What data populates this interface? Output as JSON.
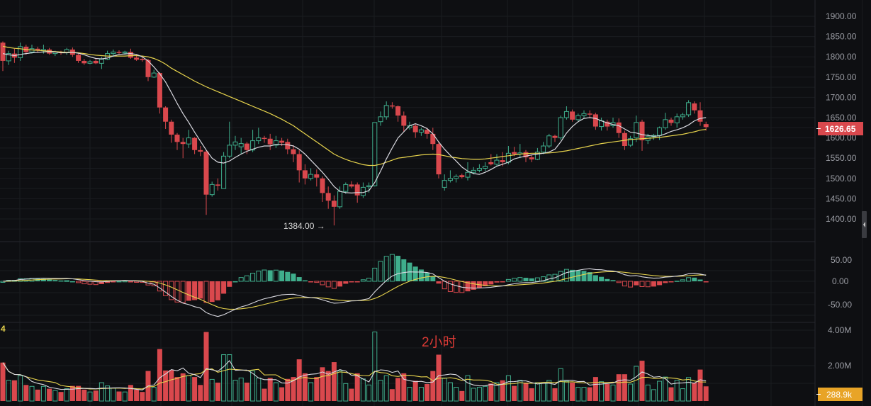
{
  "chart_data": {
    "type": "candlestick",
    "title": "",
    "period_label": "2小时",
    "current_price": "1626.65",
    "current_volume": "288.9k",
    "low_annotation": "1384.00 →",
    "pane_index_label": "4",
    "price_axis": {
      "ticks": [
        "1900.00",
        "1850.00",
        "1800.00",
        "1750.00",
        "1700.00",
        "1650.00",
        "1600.00",
        "1550.00",
        "1500.00",
        "1450.00",
        "1400.00"
      ],
      "range": [
        1385,
        1910
      ]
    },
    "macd_axis": {
      "ticks": [
        "50.00",
        "0.00",
        "-50.00"
      ]
    },
    "volume_axis": {
      "ticks": [
        "4.00M",
        "2.00M"
      ]
    },
    "colors": {
      "up": "#3fae8c",
      "down": "#d9484d",
      "ma_fast": "#d9d9e0",
      "ma_slow": "#e8d44d",
      "bg": "#0e0f12",
      "grid": "#1d1f24",
      "price_tag": "#d9484d",
      "volume_tag": "#e8a427"
    },
    "candles": [
      [
        1835,
        1838,
        1765,
        1790
      ],
      [
        1790,
        1815,
        1780,
        1808
      ],
      [
        1808,
        1820,
        1785,
        1798
      ],
      [
        1798,
        1835,
        1790,
        1825
      ],
      [
        1825,
        1830,
        1805,
        1812
      ],
      [
        1812,
        1830,
        1808,
        1820
      ],
      [
        1820,
        1825,
        1810,
        1815
      ],
      [
        1815,
        1830,
        1808,
        1818
      ],
      [
        1818,
        1822,
        1805,
        1808
      ],
      [
        1808,
        1815,
        1802,
        1812
      ],
      [
        1812,
        1815,
        1805,
        1810
      ],
      [
        1810,
        1822,
        1805,
        1818
      ],
      [
        1818,
        1823,
        1800,
        1805
      ],
      [
        1805,
        1808,
        1785,
        1790
      ],
      [
        1790,
        1795,
        1780,
        1784
      ],
      [
        1784,
        1792,
        1782,
        1788
      ],
      [
        1790,
        1795,
        1782,
        1784
      ],
      [
        1784,
        1800,
        1770,
        1794
      ],
      [
        1794,
        1815,
        1792,
        1808
      ],
      [
        1808,
        1818,
        1800,
        1812
      ],
      [
        1812,
        1816,
        1805,
        1810
      ],
      [
        1810,
        1815,
        1805,
        1812
      ],
      [
        1812,
        1820,
        1795,
        1798
      ],
      [
        1798,
        1805,
        1790,
        1793
      ],
      [
        1795,
        1798,
        1788,
        1792
      ],
      [
        1792,
        1795,
        1740,
        1750
      ],
      [
        1750,
        1768,
        1748,
        1760
      ],
      [
        1760,
        1762,
        1660,
        1675
      ],
      [
        1675,
        1678,
        1622,
        1640
      ],
      [
        1640,
        1645,
        1588,
        1608
      ],
      [
        1608,
        1612,
        1570,
        1590
      ],
      [
        1590,
        1600,
        1550,
        1585
      ],
      [
        1585,
        1620,
        1575,
        1600
      ],
      [
        1600,
        1602,
        1560,
        1570
      ],
      [
        1570,
        1580,
        1555,
        1566
      ],
      [
        1566,
        1570,
        1410,
        1460
      ],
      [
        1460,
        1492,
        1455,
        1485
      ],
      [
        1485,
        1500,
        1470,
        1482
      ],
      [
        1475,
        1565,
        1475,
        1555
      ],
      [
        1555,
        1640,
        1550,
        1582
      ],
      [
        1582,
        1605,
        1570,
        1590
      ],
      [
        1578,
        1600,
        1560,
        1586
      ],
      [
        1586,
        1590,
        1560,
        1570
      ],
      [
        1570,
        1620,
        1565,
        1593
      ],
      [
        1593,
        1625,
        1585,
        1600
      ],
      [
        1600,
        1605,
        1588,
        1598
      ],
      [
        1598,
        1610,
        1570,
        1584
      ],
      [
        1582,
        1605,
        1575,
        1593
      ],
      [
        1593,
        1600,
        1580,
        1588
      ],
      [
        1590,
        1598,
        1560,
        1572
      ],
      [
        1572,
        1582,
        1540,
        1560
      ],
      [
        1560,
        1570,
        1490,
        1520
      ],
      [
        1520,
        1535,
        1485,
        1500
      ],
      [
        1500,
        1525,
        1495,
        1510
      ],
      [
        1510,
        1522,
        1480,
        1502
      ],
      [
        1500,
        1505,
        1442,
        1464
      ],
      [
        1464,
        1480,
        1425,
        1445
      ],
      [
        1445,
        1458,
        1384,
        1430
      ],
      [
        1430,
        1480,
        1425,
        1468
      ],
      [
        1468,
        1490,
        1462,
        1485
      ],
      [
        1485,
        1493,
        1476,
        1480
      ],
      [
        1485,
        1490,
        1440,
        1458
      ],
      [
        1458,
        1490,
        1452,
        1478
      ],
      [
        1480,
        1490,
        1465,
        1482
      ],
      [
        1482,
        1635,
        1480,
        1638
      ],
      [
        1640,
        1665,
        1630,
        1652
      ],
      [
        1652,
        1690,
        1645,
        1680
      ],
      [
        1680,
        1688,
        1672,
        1678
      ],
      [
        1678,
        1680,
        1640,
        1655
      ],
      [
        1655,
        1665,
        1615,
        1630
      ],
      [
        1625,
        1640,
        1620,
        1630
      ],
      [
        1630,
        1634,
        1600,
        1614
      ],
      [
        1614,
        1625,
        1605,
        1620
      ],
      [
        1620,
        1625,
        1598,
        1610
      ],
      [
        1610,
        1625,
        1570,
        1585
      ],
      [
        1585,
        1590,
        1500,
        1510
      ],
      [
        1478,
        1510,
        1470,
        1495
      ],
      [
        1495,
        1520,
        1490,
        1500
      ],
      [
        1500,
        1510,
        1490,
        1505
      ],
      [
        1508,
        1512,
        1500,
        1503
      ],
      [
        1503,
        1540,
        1495,
        1515
      ],
      [
        1515,
        1528,
        1510,
        1520
      ],
      [
        1520,
        1535,
        1515,
        1525
      ],
      [
        1525,
        1540,
        1518,
        1530
      ],
      [
        1540,
        1560,
        1532,
        1535
      ],
      [
        1535,
        1560,
        1530,
        1545
      ],
      [
        1545,
        1565,
        1530,
        1540
      ],
      [
        1540,
        1580,
        1535,
        1562
      ],
      [
        1565,
        1578,
        1555,
        1560
      ],
      [
        1560,
        1585,
        1550,
        1563
      ],
      [
        1565,
        1570,
        1540,
        1552
      ],
      [
        1552,
        1558,
        1540,
        1547
      ],
      [
        1547,
        1575,
        1545,
        1565
      ],
      [
        1565,
        1590,
        1560,
        1580
      ],
      [
        1580,
        1610,
        1575,
        1605
      ],
      [
        1605,
        1608,
        1590,
        1600
      ],
      [
        1600,
        1655,
        1595,
        1650
      ],
      [
        1650,
        1678,
        1645,
        1665
      ],
      [
        1665,
        1670,
        1640,
        1645
      ],
      [
        1645,
        1660,
        1640,
        1655
      ],
      [
        1655,
        1668,
        1648,
        1660
      ],
      [
        1660,
        1668,
        1648,
        1658
      ],
      [
        1658,
        1662,
        1620,
        1628
      ],
      [
        1628,
        1650,
        1618,
        1642
      ],
      [
        1640,
        1645,
        1618,
        1628
      ],
      [
        1630,
        1650,
        1625,
        1638
      ],
      [
        1638,
        1648,
        1600,
        1612
      ],
      [
        1612,
        1618,
        1570,
        1580
      ],
      [
        1582,
        1605,
        1578,
        1598
      ],
      [
        1600,
        1655,
        1590,
        1638
      ],
      [
        1640,
        1645,
        1568,
        1594
      ],
      [
        1594,
        1610,
        1585,
        1603
      ],
      [
        1603,
        1610,
        1595,
        1606
      ],
      [
        1606,
        1628,
        1595,
        1625
      ],
      [
        1625,
        1662,
        1620,
        1645
      ],
      [
        1645,
        1650,
        1630,
        1637
      ],
      [
        1637,
        1660,
        1625,
        1652
      ],
      [
        1652,
        1662,
        1645,
        1657
      ],
      [
        1657,
        1693,
        1652,
        1687
      ],
      [
        1685,
        1690,
        1660,
        1668
      ],
      [
        1668,
        1688,
        1630,
        1640
      ],
      [
        1634,
        1640,
        1618,
        1626.65
      ]
    ],
    "ma_fast": [
      1808,
      1805,
      1803,
      1806,
      1808,
      1810,
      1811,
      1812,
      1813,
      1812,
      1810,
      1810,
      1811,
      1809,
      1805,
      1800,
      1796,
      1795,
      1797,
      1802,
      1806,
      1807,
      1808,
      1806,
      1800,
      1790,
      1775,
      1758,
      1738,
      1712,
      1685,
      1660,
      1638,
      1614,
      1592,
      1570,
      1550,
      1540,
      1538,
      1543,
      1552,
      1560,
      1567,
      1572,
      1577,
      1580,
      1580,
      1584,
      1584,
      1583,
      1580,
      1572,
      1560,
      1545,
      1530,
      1515,
      1498,
      1480,
      1468,
      1465,
      1464,
      1465,
      1465,
      1470,
      1490,
      1518,
      1548,
      1575,
      1600,
      1615,
      1630,
      1635,
      1630,
      1623,
      1610,
      1590,
      1572,
      1557,
      1543,
      1528,
      1518,
      1512,
      1510,
      1515,
      1522,
      1530,
      1535,
      1540,
      1548,
      1552,
      1555,
      1558,
      1560,
      1562,
      1565,
      1572,
      1590,
      1612,
      1628,
      1640,
      1648,
      1650,
      1648,
      1642,
      1637,
      1633,
      1630,
      1622,
      1614,
      1612,
      1608,
      1606,
      1604,
      1605,
      1610,
      1616,
      1620,
      1625,
      1632,
      1642,
      1648,
      1650
    ],
    "ma_slow": [
      1826,
      1823,
      1821,
      1820,
      1818,
      1817,
      1816,
      1815,
      1814,
      1813,
      1812,
      1811,
      1811,
      1810,
      1808,
      1806,
      1804,
      1803,
      1802,
      1802,
      1802,
      1802,
      1803,
      1803,
      1802,
      1800,
      1796,
      1790,
      1782,
      1772,
      1764,
      1756,
      1748,
      1740,
      1733,
      1726,
      1720,
      1714,
      1708,
      1702,
      1696,
      1690,
      1684,
      1678,
      1672,
      1666,
      1660,
      1653,
      1646,
      1638,
      1630,
      1620,
      1610,
      1600,
      1590,
      1580,
      1570,
      1560,
      1553,
      1547,
      1542,
      1538,
      1534,
      1532,
      1532,
      1535,
      1540,
      1545,
      1550,
      1552,
      1554,
      1556,
      1558,
      1559,
      1560,
      1559,
      1556,
      1553,
      1551,
      1549,
      1548,
      1547,
      1547,
      1548,
      1550,
      1552,
      1554,
      1556,
      1558,
      1560,
      1561,
      1562,
      1562,
      1562,
      1563,
      1564,
      1566,
      1568,
      1571,
      1574,
      1577,
      1580,
      1583,
      1586,
      1588,
      1590,
      1592,
      1594,
      1596,
      1597,
      1598,
      1599,
      1600,
      1601,
      1603,
      1605,
      1607,
      1609,
      1612,
      1615,
      1619,
      1621
    ]
  },
  "scroll_handle": {
    "icon": "chevron-left-icon"
  }
}
